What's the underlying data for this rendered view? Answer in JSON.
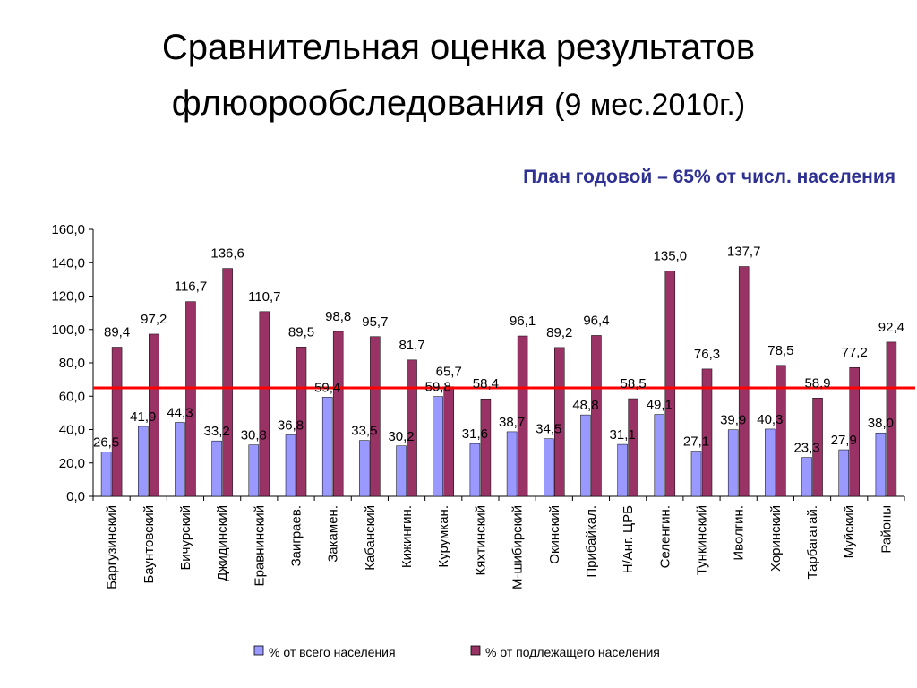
{
  "header": {
    "title_line1": "Сравнительная оценка результатов",
    "title_line2": "флюорообследования",
    "title_suffix": "(9 мес.2010г.)",
    "plan_note": "План годовой – 65% от числ. населения"
  },
  "colors": {
    "series1": "#9999ff",
    "series2": "#993366",
    "plan_line": "#ff0000"
  },
  "chart_data": {
    "type": "bar",
    "title": "Сравнительная оценка результатов флюорообследования (9 мес.2010г.)",
    "categories": [
      "Баргузинский",
      "Баунтовский",
      "Бичурский",
      "Джидинский",
      "Еравнинский",
      "Заиграев.",
      "Закамен.",
      "Кабанский",
      "Кижингин.",
      "Курумкан.",
      "Кяхтинский",
      "М-шибирский",
      "Окинский",
      "Прибайкал.",
      "Н/Анг. ЦРБ",
      "Селенгин.",
      "Тункинский",
      "Иволгин.",
      "Хоринский",
      "Тарбагатай.",
      "Муйский",
      "Районы"
    ],
    "series": [
      {
        "name": "% от всего населения",
        "values": [
          26.5,
          41.9,
          44.3,
          33.2,
          30.8,
          36.8,
          59.4,
          33.5,
          30.2,
          59.8,
          31.6,
          38.7,
          34.5,
          48.8,
          31.1,
          49.1,
          27.1,
          39.9,
          40.3,
          23.3,
          27.9,
          38.0
        ],
        "labels": [
          "26,5",
          "41,9",
          "44,3",
          "33,2",
          "30,8",
          "36,8",
          "59,4",
          "33,5",
          "30,2",
          "59,8",
          "31,6",
          "38,7",
          "34,5",
          "48,8",
          "31,1",
          "49,1",
          "27,1",
          "39,9",
          "40,3",
          "23,3",
          "27,9",
          "38,0"
        ]
      },
      {
        "name": "% от подлежащего населения",
        "values": [
          89.4,
          97.2,
          116.7,
          136.6,
          110.7,
          89.5,
          98.8,
          95.7,
          81.7,
          65.7,
          58.4,
          96.1,
          89.2,
          96.4,
          58.5,
          135.0,
          76.3,
          137.7,
          78.5,
          58.9,
          77.2,
          92.4
        ],
        "labels": [
          "89,4",
          "97,2",
          "116,7",
          "136,6",
          "110,7",
          "89,5",
          "98,8",
          "95,7",
          "81,7",
          "65,7",
          "58,4",
          "96,1",
          "89,2",
          "96,4",
          "58,5",
          "135,0",
          "76,3",
          "137,7",
          "78,5",
          "58,9",
          "77,2",
          "92,4"
        ]
      }
    ],
    "y_ticks": [
      "0,0",
      "20,0",
      "40,0",
      "60,0",
      "80,0",
      "100,0",
      "120,0",
      "140,0",
      "160,0"
    ],
    "ylim": [
      0,
      160
    ],
    "reference_line": 65,
    "legend_position": "bottom",
    "grid": false
  }
}
